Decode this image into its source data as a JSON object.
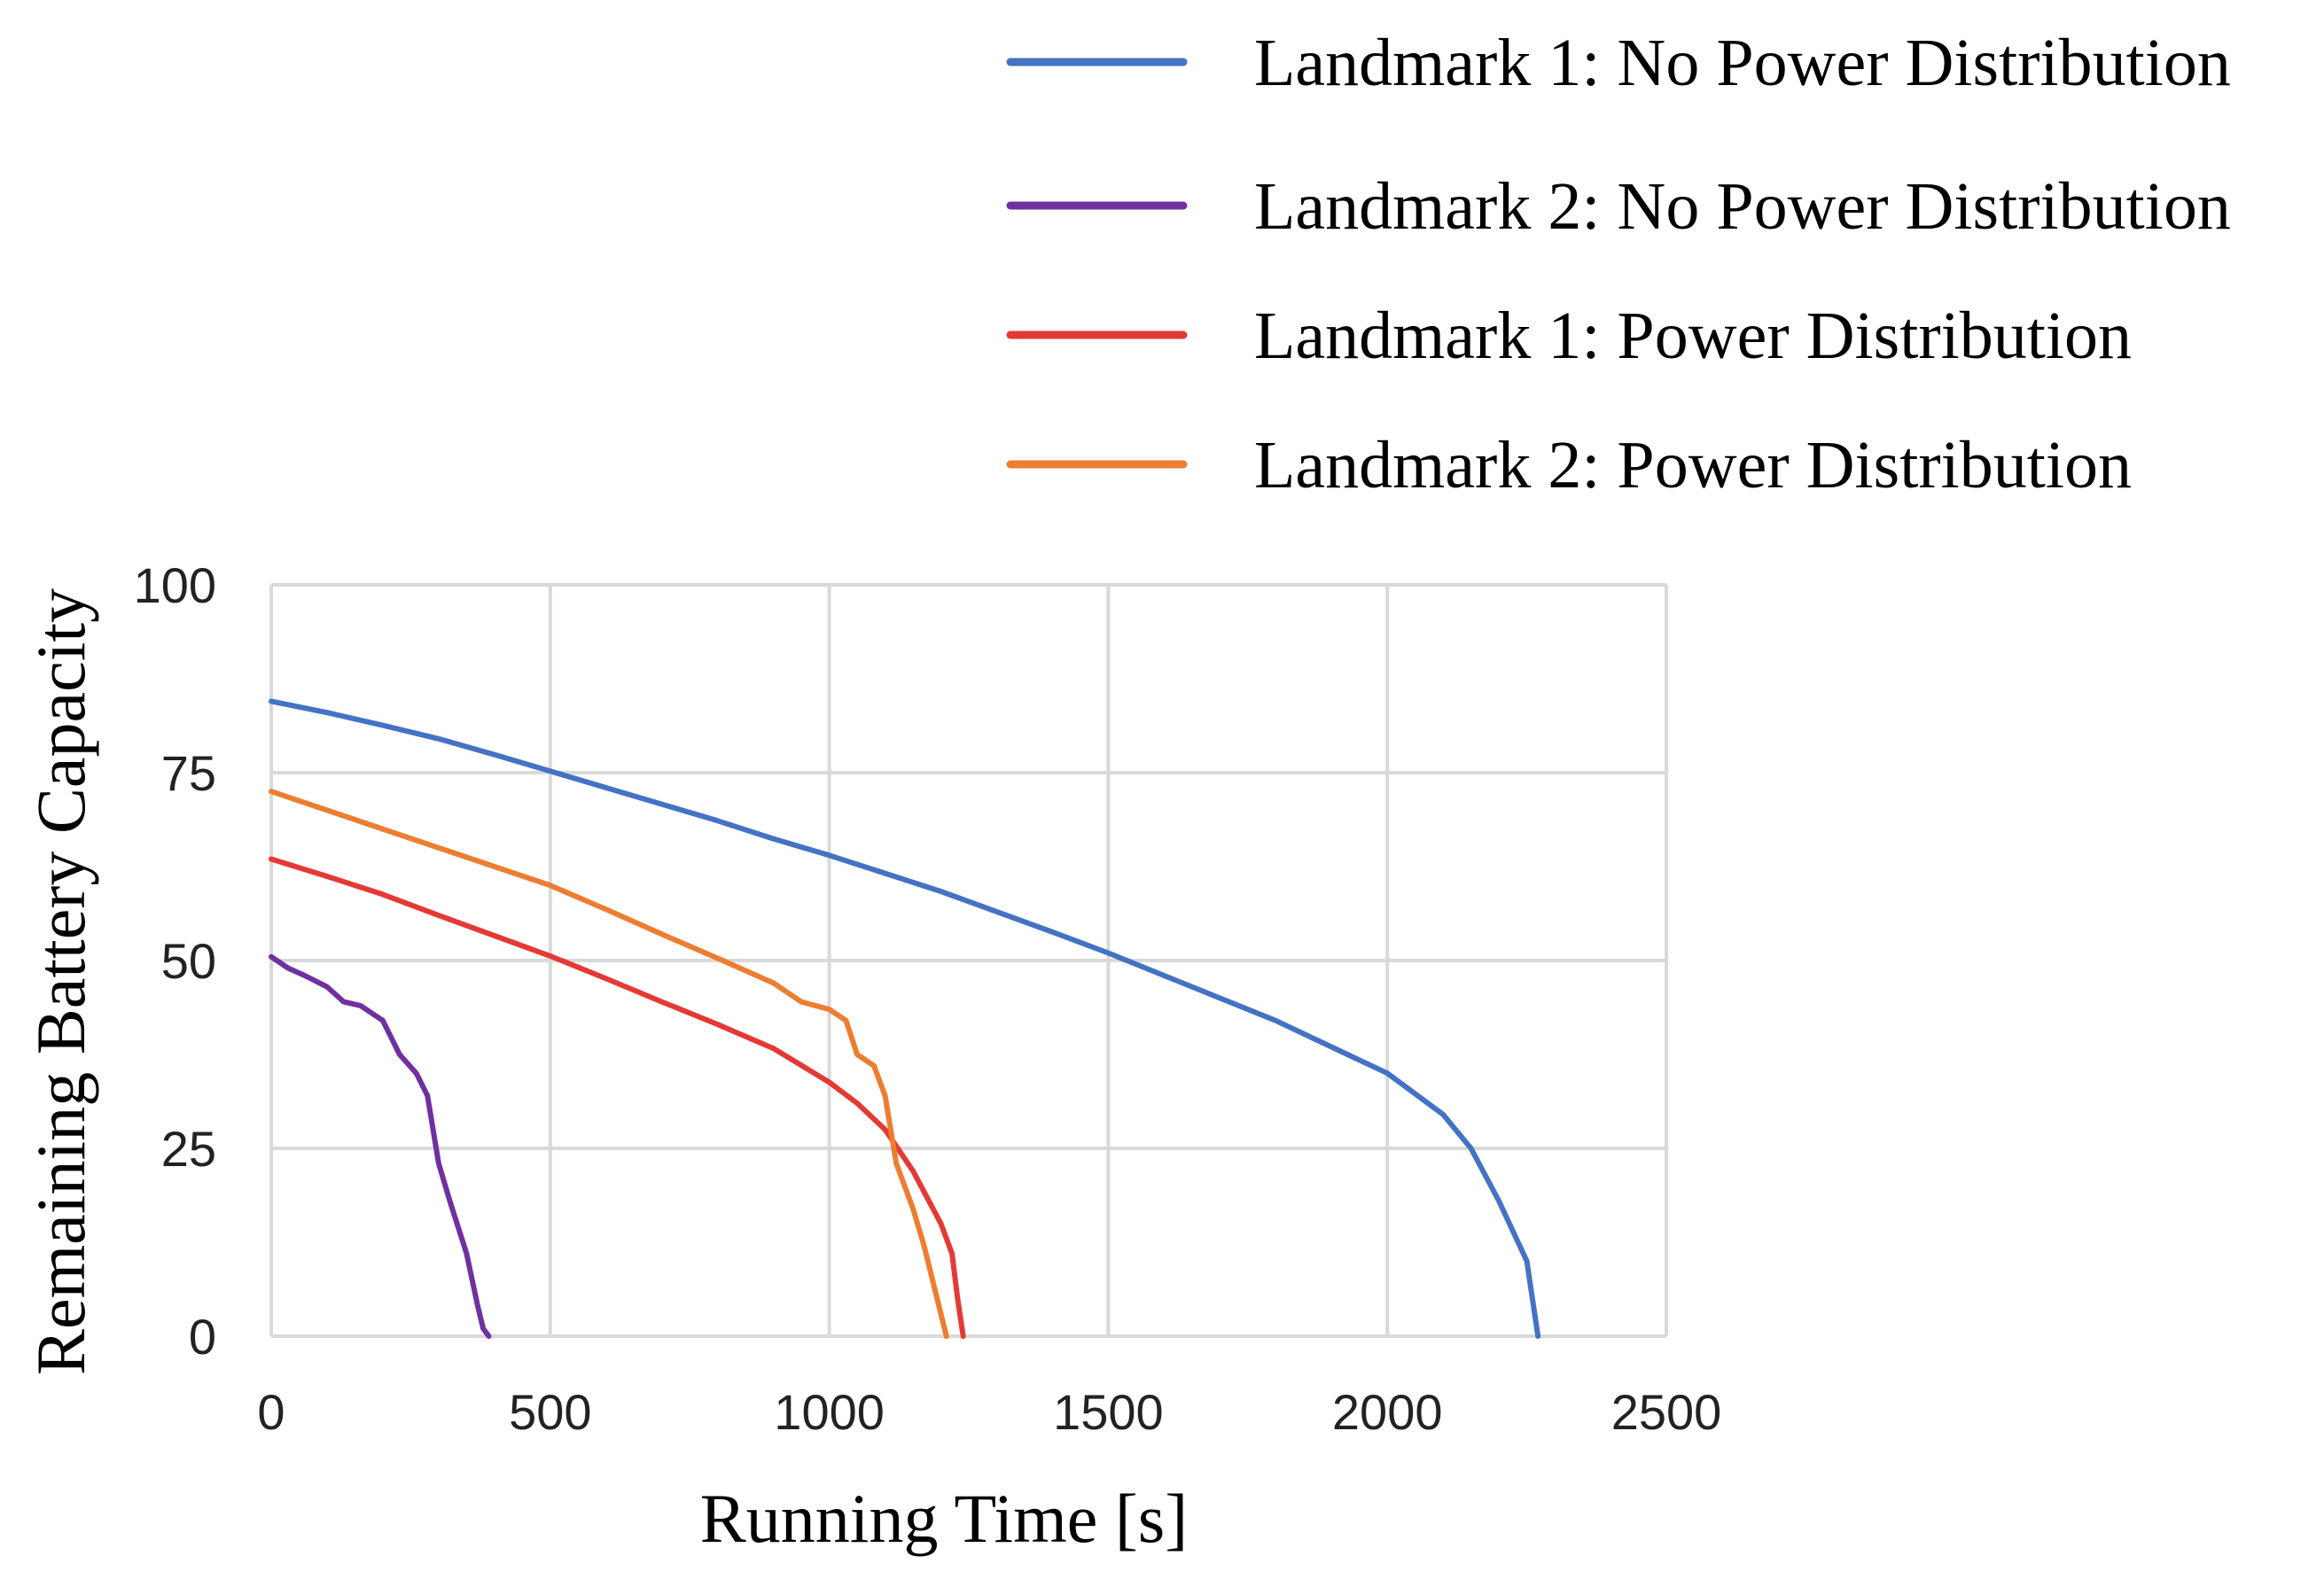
{
  "chart_data": {
    "type": "line",
    "title": "",
    "xlabel": "Running Time [s]",
    "ylabel": "Remaining Battery Capacity",
    "xlim": [
      0,
      2500
    ],
    "ylim": [
      0,
      100
    ],
    "xticks": [
      0,
      500,
      1000,
      1500,
      2000,
      2500
    ],
    "yticks": [
      0,
      25,
      50,
      75,
      100
    ],
    "xtick_labels": [
      "0",
      "500",
      "1000",
      "1500",
      "2000",
      "2500"
    ],
    "ytick_labels": [
      "0",
      "25",
      "50",
      "75",
      "100"
    ],
    "grid": true,
    "legend_position": "top-right",
    "series": [
      {
        "name": "Landmark 1: No Power Distribution",
        "color": "#4472C4",
        "x": [
          0,
          100,
          200,
          300,
          400,
          500,
          600,
          700,
          800,
          900,
          1000,
          1100,
          1200,
          1300,
          1400,
          1500,
          1600,
          1700,
          1800,
          1900,
          2000,
          2100,
          2150,
          2200,
          2250,
          2270
        ],
        "y": [
          84.5,
          83,
          81.3,
          79.5,
          77.4,
          75.2,
          73,
          70.8,
          68.6,
          66.2,
          64,
          61.6,
          59.2,
          56.5,
          53.8,
          51,
          48,
          45,
          42,
          38.5,
          35,
          29.5,
          25,
          18,
          10,
          0
        ]
      },
      {
        "name": "Landmark 2: No Power Distribution",
        "color": "#7030A0",
        "x": [
          0,
          30,
          60,
          100,
          130,
          160,
          200,
          230,
          260,
          280,
          300,
          320,
          350,
          370,
          380,
          390
        ],
        "y": [
          50.5,
          49,
          48,
          46.5,
          44.5,
          44,
          42,
          37.5,
          35,
          32,
          23,
          18,
          11,
          4,
          1,
          0
        ]
      },
      {
        "name": "Landmark 1: Power Distribution",
        "color": "#E53935",
        "x": [
          0,
          100,
          200,
          300,
          400,
          500,
          600,
          700,
          800,
          900,
          1000,
          1050,
          1100,
          1150,
          1200,
          1220,
          1230,
          1240
        ],
        "y": [
          63.5,
          61.2,
          58.8,
          56,
          53.3,
          50.6,
          47.6,
          44.5,
          41.5,
          38.3,
          33.8,
          31,
          27.5,
          22,
          15,
          11,
          5,
          0
        ]
      },
      {
        "name": "Landmark 2: Power Distribution",
        "color": "#ED7D31",
        "x": [
          0,
          100,
          200,
          300,
          400,
          500,
          600,
          700,
          800,
          900,
          950,
          1000,
          1030,
          1050,
          1080,
          1100,
          1120,
          1150,
          1170,
          1190,
          1200,
          1210
        ],
        "y": [
          72.5,
          70,
          67.5,
          65,
          62.5,
          60,
          56.8,
          53.5,
          50.3,
          47,
          44.5,
          43.5,
          42,
          37.5,
          36,
          32,
          23,
          17,
          12,
          6,
          3,
          0
        ]
      }
    ]
  }
}
